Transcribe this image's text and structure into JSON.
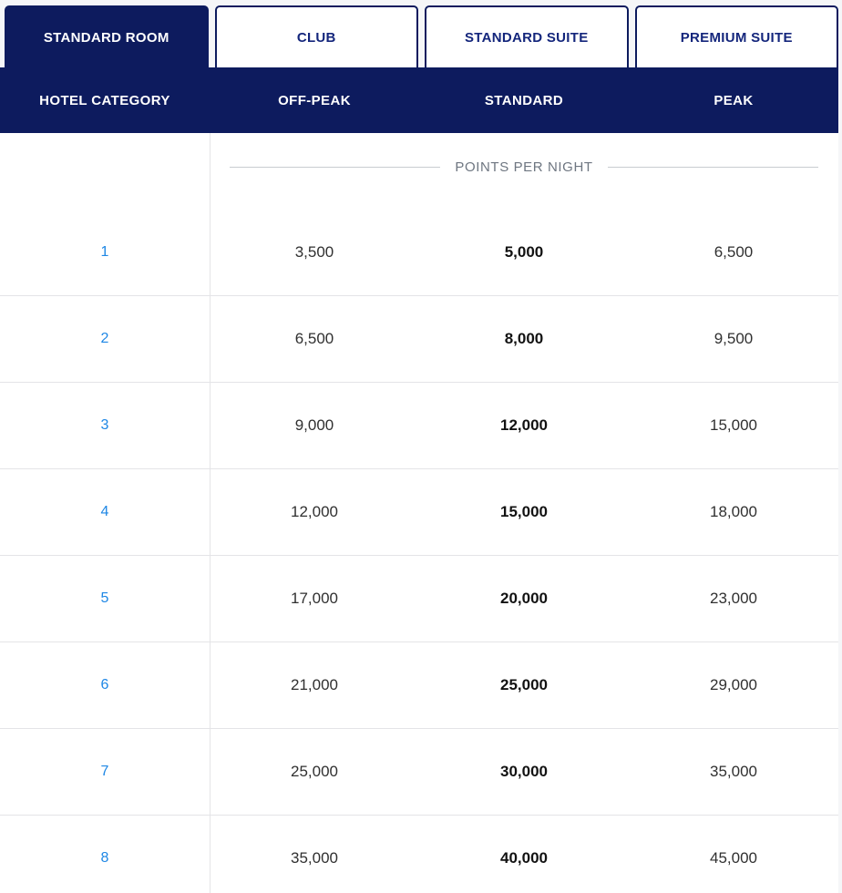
{
  "colors": {
    "navy": "#0d1b5e",
    "tab_text": "#14267c",
    "link_blue": "#1e87e5",
    "value_text": "#303030",
    "value_bold_text": "#121212",
    "legend_text": "#6e7681",
    "divider": "#e4e4e7",
    "legend_line": "#c9ccd1",
    "page_bg": "#f5f6f8"
  },
  "tabs": [
    {
      "label": "STANDARD ROOM",
      "active": true
    },
    {
      "label": "CLUB",
      "active": false
    },
    {
      "label": "STANDARD SUITE",
      "active": false
    },
    {
      "label": "PREMIUM SUITE",
      "active": false
    }
  ],
  "header": {
    "columns": [
      "HOTEL CATEGORY",
      "OFF-PEAK",
      "STANDARD",
      "PEAK"
    ]
  },
  "legend": "POINTS PER NIGHT",
  "table": {
    "rows": [
      {
        "category": "1",
        "off_peak": "3,500",
        "standard": "5,000",
        "peak": "6,500"
      },
      {
        "category": "2",
        "off_peak": "6,500",
        "standard": "8,000",
        "peak": "9,500"
      },
      {
        "category": "3",
        "off_peak": "9,000",
        "standard": "12,000",
        "peak": "15,000"
      },
      {
        "category": "4",
        "off_peak": "12,000",
        "standard": "15,000",
        "peak": "18,000"
      },
      {
        "category": "5",
        "off_peak": "17,000",
        "standard": "20,000",
        "peak": "23,000"
      },
      {
        "category": "6",
        "off_peak": "21,000",
        "standard": "25,000",
        "peak": "29,000"
      },
      {
        "category": "7",
        "off_peak": "25,000",
        "standard": "30,000",
        "peak": "35,000"
      },
      {
        "category": "8",
        "off_peak": "35,000",
        "standard": "40,000",
        "peak": "45,000"
      }
    ]
  }
}
